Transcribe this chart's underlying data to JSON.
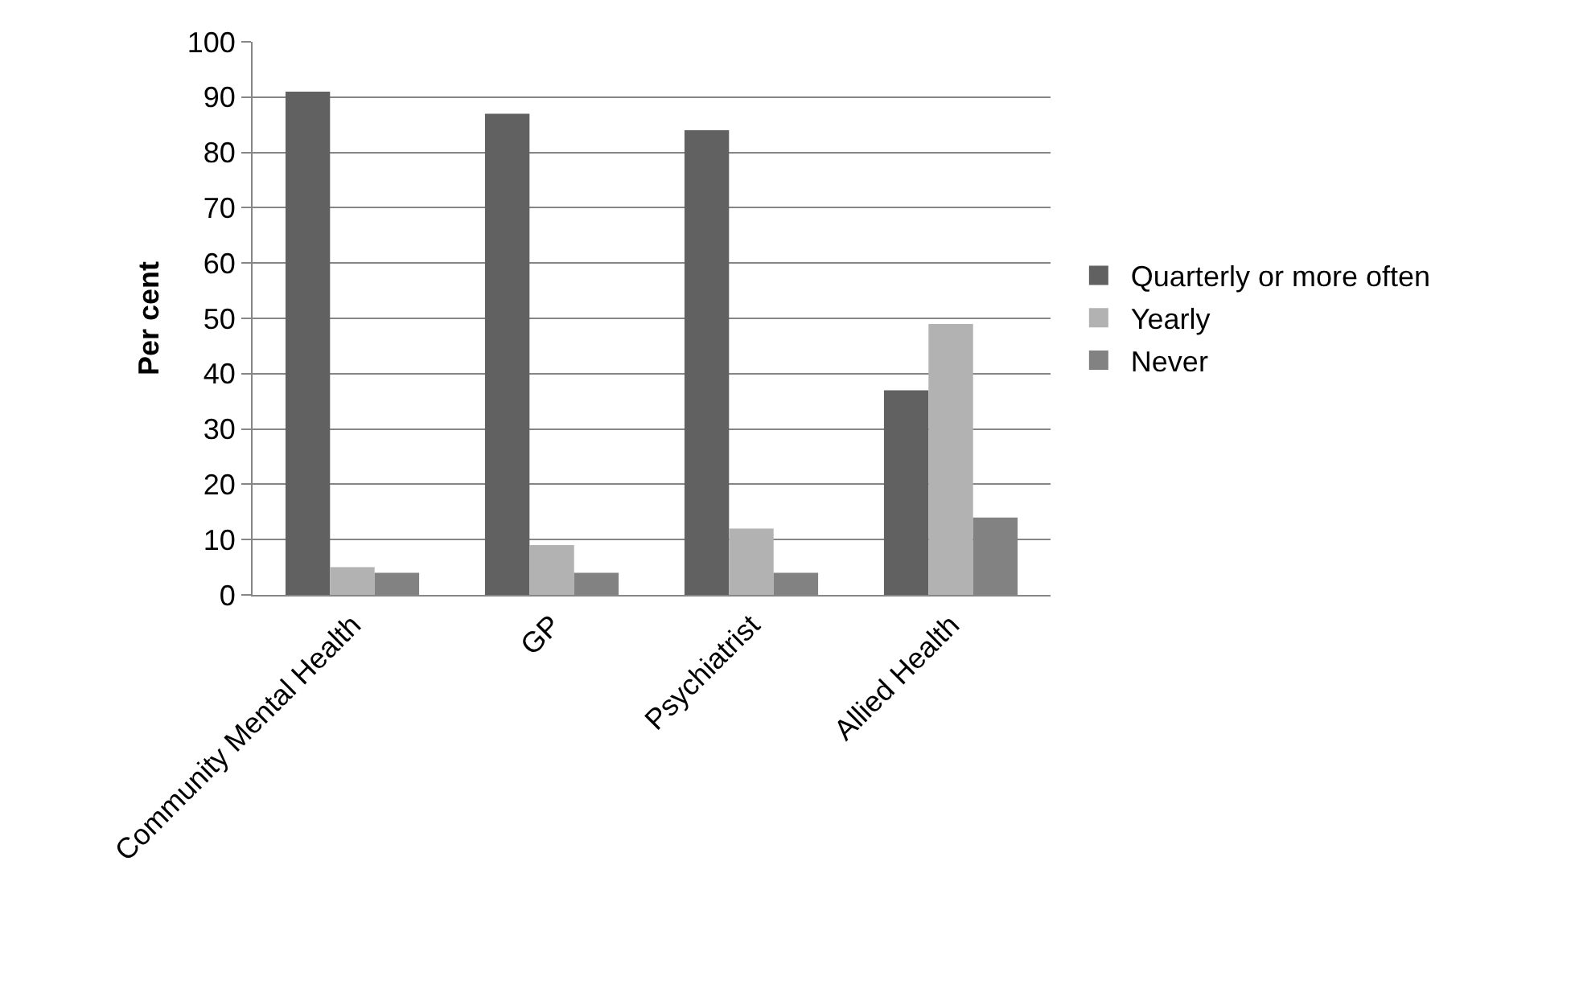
{
  "chart_data": {
    "type": "bar",
    "ylabel": "Per cent",
    "categories": [
      "Community Mental Health",
      "GP",
      "Psychiatrist",
      "Allied Health"
    ],
    "series": [
      {
        "name": "Quarterly or more often",
        "color": "#616161",
        "values": [
          91,
          87,
          84,
          37
        ]
      },
      {
        "name": "Yearly",
        "color": "#b2b2b2",
        "values": [
          5,
          9,
          12,
          49
        ]
      },
      {
        "name": "Never",
        "color": "#828282",
        "values": [
          4,
          4,
          4,
          14
        ]
      }
    ],
    "ylim": [
      0,
      100
    ],
    "yticks": [
      0,
      10,
      20,
      30,
      40,
      50,
      60,
      70,
      80,
      90,
      100
    ],
    "grid": "y",
    "legend": "right"
  }
}
